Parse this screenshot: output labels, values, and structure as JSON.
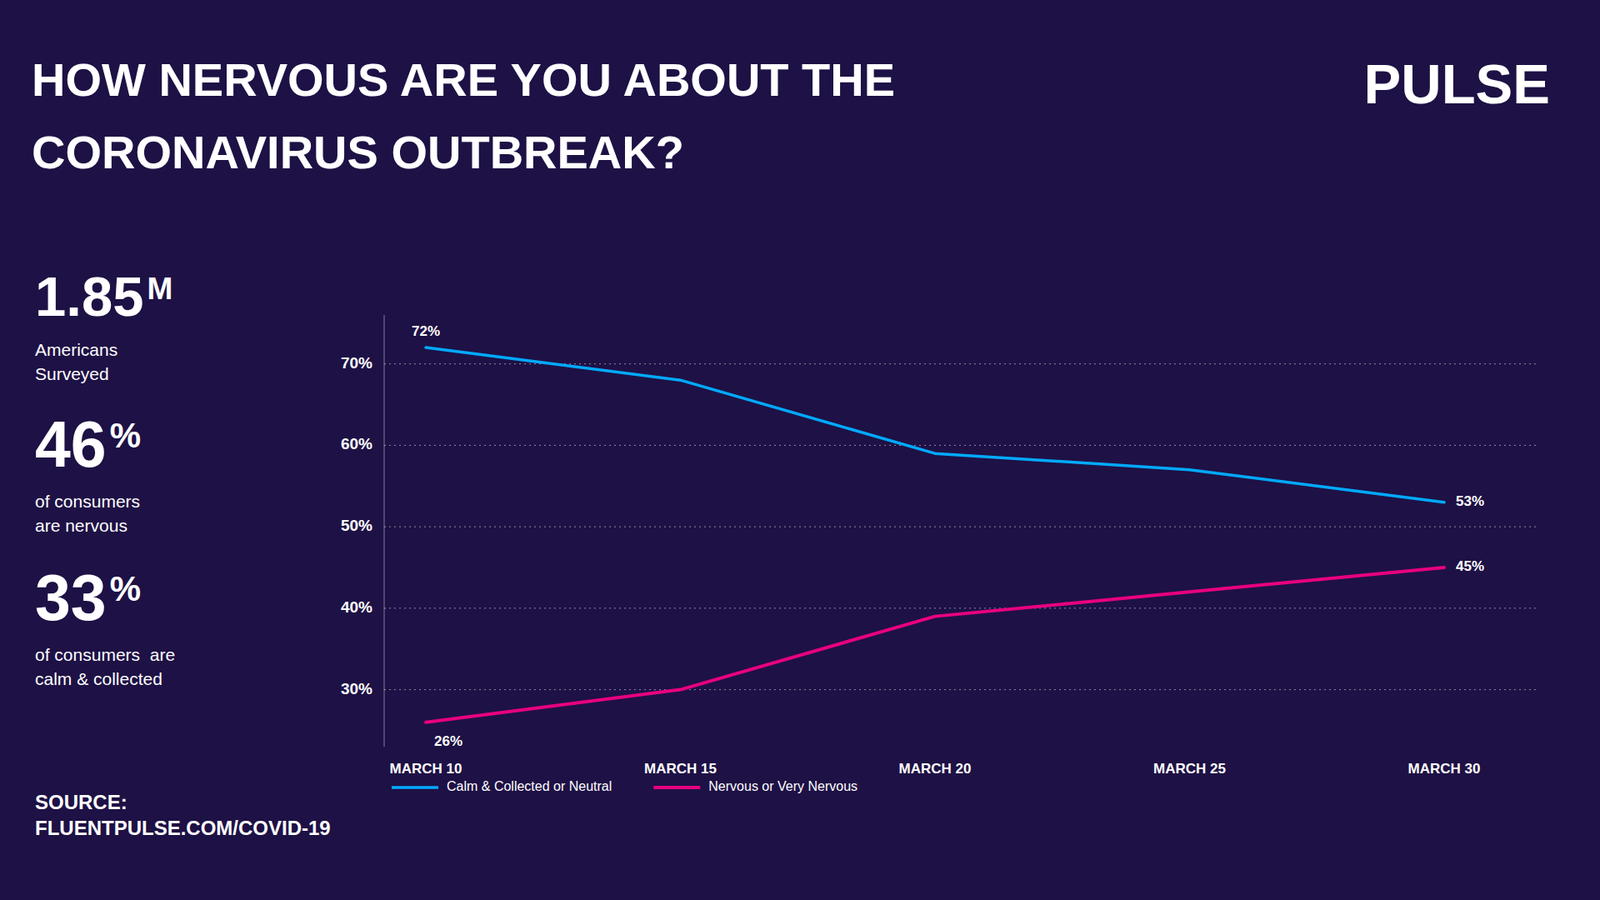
{
  "chart_data": {
    "type": "line",
    "title": "HOW NERVOUS ARE YOU ABOUT THE\nCORONAVIRUS OUTBREAK?",
    "annotations": [
      "1.85M",
      "Americans\nSurveyed",
      "46%",
      "of consumers\nare nervous",
      "33%",
      "of consumers  are\ncalm & collected",
      "PULSE",
      "SOURCE:\nFLUENTPULSE.COM/COVID-19"
    ],
    "categories": [
      "MARCH 10",
      "MARCH 15",
      "MARCH 20",
      "MARCH 25",
      "MARCH 30"
    ],
    "series": [
      {
        "name": "Calm & Collected or Neutral",
        "color": "#00aaff",
        "values": [
          72,
          68,
          59,
          57,
          53
        ],
        "value_labels": [
          "72%",
          null,
          null,
          null,
          "53%"
        ]
      },
      {
        "name": "Nervous or Very Nervous",
        "color": "#e8007d",
        "values": [
          26,
          30,
          39,
          42,
          45
        ],
        "value_labels": [
          "26%",
          null,
          null,
          null,
          "45%"
        ]
      }
    ],
    "ylim": [
      23,
      76
    ],
    "yticks": [
      {
        "value": 30,
        "label": "30%"
      },
      {
        "value": 40,
        "label": "40%"
      },
      {
        "value": 50,
        "label": "50%"
      },
      {
        "value": 60,
        "label": "60%"
      },
      {
        "value": 70,
        "label": "70%"
      }
    ],
    "grid": true,
    "legend": "bottom"
  }
}
